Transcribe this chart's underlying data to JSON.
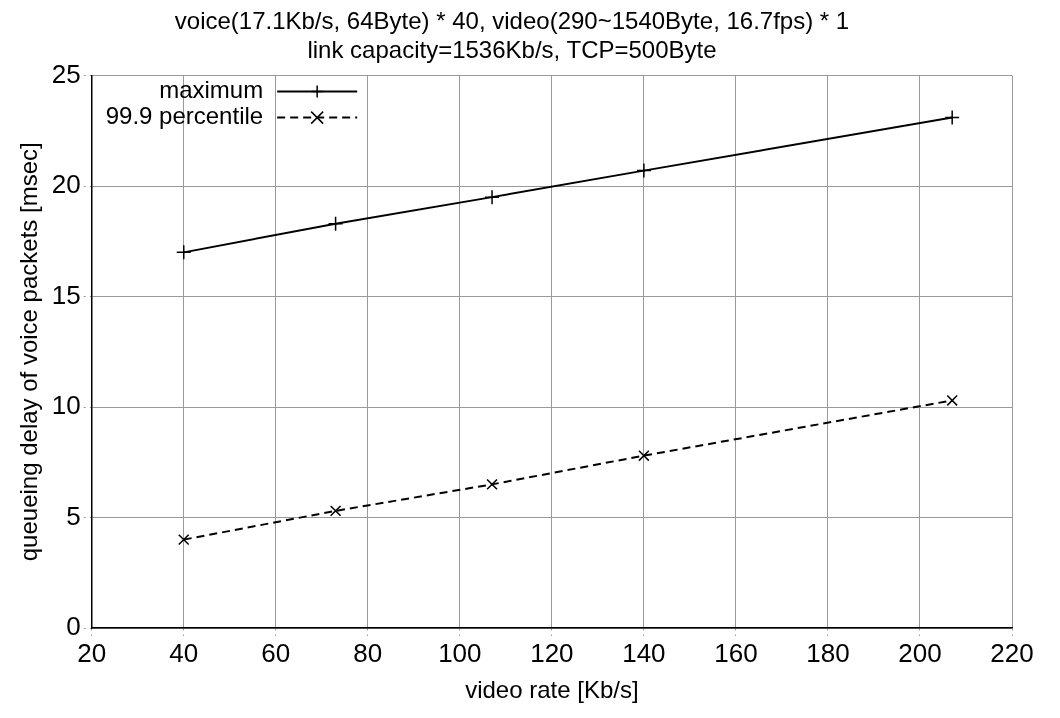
{
  "chart_data": {
    "type": "line",
    "title": "voice(17.1Kb/s, 64Byte) * 40, video(290~1540Byte, 16.7fps) * 1",
    "subtitle": "link capacity=1536Kb/s, TCP=500Byte",
    "xlabel": "video rate [Kb/s]",
    "ylabel": "queueing delay of voice packets [msec]",
    "x": [
      40,
      73,
      107,
      140,
      207
    ],
    "series": [
      {
        "name": "maximum",
        "color": "#000000",
        "marker": "cross",
        "line_style": "solid",
        "values": [
          17.0,
          18.3,
          19.5,
          20.7,
          23.1
        ]
      },
      {
        "name": "99.9 percentile",
        "color": "#000000",
        "marker": "cross",
        "line_style": "dashed",
        "values": [
          4.0,
          5.3,
          6.5,
          7.8,
          10.3
        ]
      }
    ],
    "xlim": [
      20,
      220
    ],
    "xticks": [
      20,
      40,
      60,
      80,
      100,
      120,
      140,
      160,
      180,
      200,
      220
    ],
    "ylim": [
      0,
      25
    ],
    "yticks": [
      0,
      5,
      10,
      15,
      20,
      25
    ],
    "grid": true,
    "legend": "top left"
  }
}
